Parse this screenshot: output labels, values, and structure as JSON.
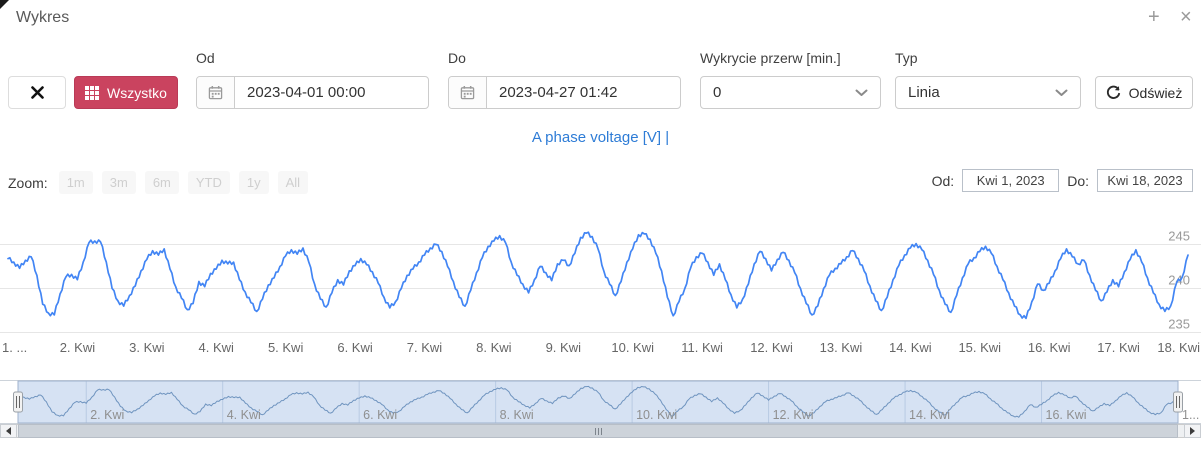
{
  "window": {
    "title": "Wykres",
    "plus": "+",
    "close": "×"
  },
  "toolbar": {
    "clear_icon": "✕",
    "wszystko_label": "Wszystko",
    "od_label": "Od",
    "od_value": "2023-04-01 00:00",
    "do_label": "Do",
    "do_value": "2023-04-27 01:42",
    "przerwy_label": "Wykrycie przerw [min.]",
    "przerwy_value": "0",
    "typ_label": "Typ",
    "typ_value": "Linia",
    "refresh_label": "Odśwież"
  },
  "legend": {
    "series_label": "A phase voltage [V]",
    "separator": "|"
  },
  "range_controls": {
    "zoom_label": "Zoom:",
    "buttons": [
      "1m",
      "3m",
      "6m",
      "YTD",
      "1y",
      "All"
    ],
    "from_label": "Od:",
    "from_value": "Kwi 1, 2023",
    "to_label": "Do:",
    "to_value": "Kwi 18, 2023"
  },
  "colors": {
    "accent_red": "#ca435f",
    "line_blue": "#4285f4",
    "legend_blue": "#2e7cd6",
    "nav_line": "#6f94bf",
    "nav_mask": "rgba(120,160,215,0.30)",
    "grid": "#e6e6e6",
    "ylabel": "#999999",
    "xlabel": "#666666"
  },
  "chart_data": {
    "type": "line",
    "title": "",
    "ylabel": "",
    "xlabel": "",
    "yticks": [
      235,
      240,
      245
    ],
    "ylim": [
      233.5,
      249.4
    ],
    "x_tick_labels": [
      "1. ...",
      "2. Kwi",
      "3. Kwi",
      "4. Kwi",
      "5. Kwi",
      "6. Kwi",
      "7. Kwi",
      "8. Kwi",
      "9. Kwi",
      "10. Kwi",
      "11. Kwi",
      "12. Kwi",
      "13. Kwi",
      "14. Kwi",
      "15. Kwi",
      "16. Kwi",
      "17. Kwi",
      "18. Kwi"
    ],
    "legend_position": "top",
    "grid": true,
    "series": [
      {
        "name": "A phase voltage [V]",
        "color": "#4285f4",
        "start": "2023-04-01 00:00",
        "interval_hours": 2,
        "values": [
          243.4,
          243.0,
          242.3,
          243.2,
          243.6,
          241.5,
          238.2,
          237.2,
          237.0,
          239.4,
          241.3,
          241.6,
          241.0,
          243.0,
          245.2,
          245.4,
          245.3,
          243.0,
          240.0,
          238.6,
          238.0,
          239.2,
          240.3,
          242.0,
          243.3,
          244.3,
          243.8,
          244.5,
          242.2,
          240.2,
          238.9,
          237.6,
          238.3,
          240.8,
          240.2,
          241.7,
          242.2,
          243.2,
          242.8,
          243.0,
          241.0,
          239.6,
          238.4,
          237.4,
          238.8,
          240.4,
          241.2,
          242.5,
          243.7,
          244.4,
          243.9,
          244.6,
          243.0,
          240.5,
          238.8,
          237.9,
          239.5,
          241.0,
          240.4,
          242.0,
          242.6,
          243.4,
          242.7,
          241.9,
          240.6,
          239.0,
          237.8,
          238.5,
          240.0,
          241.5,
          242.2,
          243.0,
          243.8,
          244.6,
          245.0,
          244.2,
          242.5,
          240.8,
          239.0,
          238.0,
          239.8,
          241.8,
          243.5,
          244.8,
          245.4,
          246.0,
          245.2,
          243.0,
          241.5,
          240.5,
          239.5,
          241.0,
          242.5,
          241.8,
          240.9,
          242.8,
          243.2,
          242.6,
          244.0,
          245.8,
          246.3,
          245.9,
          244.5,
          242.0,
          240.5,
          239.2,
          240.8,
          243.0,
          244.5,
          246.1,
          246.2,
          245.6,
          244.0,
          242.0,
          239.0,
          236.9,
          238.5,
          240.0,
          242.3,
          243.6,
          244.0,
          243.0,
          241.5,
          242.8,
          241.0,
          239.3,
          237.8,
          238.8,
          240.5,
          242.8,
          244.2,
          243.4,
          242.0,
          243.3,
          244.1,
          243.2,
          241.8,
          240.0,
          238.3,
          237.0,
          238.0,
          240.0,
          241.5,
          242.3,
          242.8,
          243.6,
          244.3,
          243.4,
          242.0,
          240.3,
          238.6,
          237.5,
          239.0,
          241.0,
          242.6,
          243.8,
          244.6,
          245.1,
          244.4,
          243.2,
          241.6,
          239.8,
          238.2,
          237.3,
          239.2,
          241.2,
          242.8,
          243.5,
          244.2,
          244.8,
          244.0,
          242.5,
          241.0,
          239.5,
          238.0,
          237.0,
          236.6,
          238.5,
          240.5,
          239.8,
          240.6,
          242.0,
          243.4,
          244.5,
          243.6,
          242.8,
          243.2,
          241.5,
          239.8,
          238.6,
          239.6,
          241.0,
          240.2,
          241.9,
          243.3,
          244.4,
          243.0,
          241.2,
          239.5,
          238.2,
          237.4,
          238.0,
          240.6,
          241.3,
          243.8
        ]
      }
    ]
  },
  "navigator": {
    "tick_days": [
      2,
      4,
      6,
      8,
      10,
      12,
      14,
      16,
      18
    ],
    "tick_labels": [
      "2. Kwi",
      "4. Kwi",
      "6. Kwi",
      "8. Kwi",
      "10. Kwi",
      "12. Kwi",
      "14. Kwi",
      "16. Kwi",
      "1..."
    ]
  }
}
